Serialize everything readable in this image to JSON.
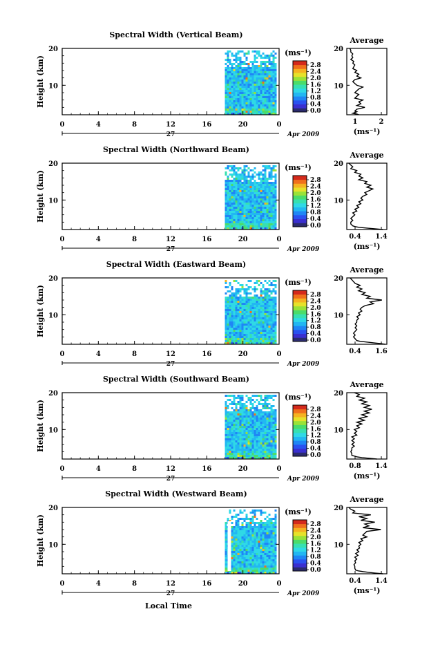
{
  "colors": {
    "colorbar": [
      "#2b2b6e",
      "#3a2fd0",
      "#2a52f0",
      "#1f86f5",
      "#22b7f2",
      "#2fd9e6",
      "#37e0b0",
      "#4bdc6a",
      "#9ae238",
      "#e6e22a",
      "#f5b321",
      "#f0701c",
      "#d42a1c"
    ]
  },
  "x_axis": {
    "ticks": [
      "0",
      "4",
      "8",
      "12",
      "16",
      "20",
      "0"
    ],
    "day_label": "27",
    "date_label": "Apr 2009",
    "title": "Local Time"
  },
  "y_axis": {
    "label": "Height (km)",
    "ticks": [
      "20",
      "10"
    ]
  },
  "colorbar": {
    "unit": "(ms⁻¹)",
    "ticks": [
      "2.8",
      "2.4",
      "2.0",
      "1.6",
      "1.2",
      "0.8",
      "0.4",
      "0.0"
    ]
  },
  "panels": [
    {
      "title": "Spectral Width (Vertical Beam)",
      "avg_title": "Average",
      "avg_xlabel": "(ms⁻¹)",
      "avg_xticks": [
        "1",
        "2"
      ]
    },
    {
      "title": "Spectral Width (Northward Beam)",
      "avg_title": "Average",
      "avg_xlabel": "(ms⁻¹)",
      "avg_xticks": [
        "0.4",
        "1.4"
      ]
    },
    {
      "title": "Spectral Width (Eastward Beam)",
      "avg_title": "Average",
      "avg_xlabel": "",
      "avg_xticks": [
        "0.4",
        "1.6"
      ]
    },
    {
      "title": "Spectral Width (Southward Beam)",
      "avg_title": "Average",
      "avg_xlabel": "(ms⁻¹)",
      "avg_xticks": [
        "0.8",
        "1.4"
      ]
    },
    {
      "title": "Spectral Width (Westward Beam)",
      "avg_title": "Average",
      "avg_xlabel": "(ms⁻¹)",
      "avg_xticks": [
        "0.4",
        "1.4"
      ]
    }
  ],
  "chart_data": [
    {
      "type": "heatmap",
      "title": "Spectral Width (Vertical Beam)",
      "xlabel": "Local Time",
      "ylabel": "Height (km)",
      "xlim": [
        0,
        24
      ],
      "ylim": [
        2,
        20
      ],
      "clim": [
        0.0,
        3.0
      ],
      "data_start_hour": 18.0
    },
    {
      "type": "line",
      "title": "Average",
      "xlabel": "(ms⁻¹)",
      "ylabel": "Height (km)",
      "xlim": [
        0.4,
        2.4
      ],
      "ylim": [
        2,
        20
      ],
      "x": [
        0.55,
        0.6,
        0.6,
        0.7,
        0.65,
        0.7,
        0.6,
        0.75,
        0.7,
        0.8,
        0.75,
        0.7,
        0.9,
        0.8,
        1.0,
        0.9,
        1.1,
        0.8,
        0.7,
        0.8,
        0.9,
        1.2,
        1.0,
        0.9,
        0.8,
        1.0,
        0.9,
        0.8,
        1.2,
        1.0,
        1.1,
        0.9,
        1.3,
        0.9,
        0.8,
        0.9,
        0.8,
        0.7,
        0.9,
        1.0
      ],
      "y": [
        20,
        19.5,
        19,
        18.5,
        18,
        17.5,
        17,
        16.5,
        16,
        15.5,
        15,
        14.5,
        14,
        13.5,
        13,
        12.5,
        12,
        11.5,
        11,
        10.5,
        10,
        9.5,
        9,
        8.5,
        8,
        7.5,
        7,
        6.5,
        6,
        5.5,
        5,
        4.5,
        4,
        3.5,
        3,
        2.8,
        2.6,
        2.4,
        2.2,
        2
      ]
    },
    {
      "type": "heatmap",
      "title": "Spectral Width (Northward Beam)",
      "xlabel": "Local Time",
      "ylabel": "Height (km)",
      "xlim": [
        0,
        24
      ],
      "ylim": [
        2,
        20
      ],
      "clim": [
        0.0,
        3.0
      ],
      "data_start_hour": 18.0
    },
    {
      "type": "line",
      "title": "Average",
      "xlabel": "(ms⁻¹)",
      "ylabel": "Height (km)",
      "xlim": [
        0.4,
        1.4
      ],
      "ylim": [
        2,
        20
      ],
      "x": [
        0.45,
        0.5,
        0.55,
        0.5,
        0.65,
        0.6,
        0.75,
        0.7,
        0.8,
        0.7,
        0.9,
        0.85,
        1.0,
        0.9,
        1.05,
        0.95,
        0.85,
        0.9,
        0.8,
        0.75,
        0.8,
        0.7,
        0.75,
        0.65,
        0.7,
        0.6,
        0.65,
        0.55,
        0.6,
        0.55,
        0.5,
        0.55,
        0.5,
        0.5,
        0.55,
        0.6,
        0.7,
        0.9,
        1.1,
        1.3
      ],
      "y": [
        20,
        19.5,
        19,
        18.5,
        18,
        17.5,
        17,
        16.5,
        16,
        15.5,
        15,
        14.5,
        14,
        13.5,
        13,
        12.5,
        12,
        11.5,
        11,
        10.5,
        10,
        9.5,
        9,
        8.5,
        8,
        7.5,
        7,
        6.5,
        6,
        5.5,
        5,
        4.5,
        4,
        3.5,
        3,
        2.8,
        2.6,
        2.4,
        2.2,
        2
      ]
    },
    {
      "type": "heatmap",
      "title": "Spectral Width (Eastward Beam)",
      "xlabel": "Local Time",
      "ylabel": "Height (km)",
      "xlim": [
        0,
        24
      ],
      "ylim": [
        2,
        20
      ],
      "clim": [
        0.0,
        3.0
      ],
      "data_start_hour": 18.0
    },
    {
      "type": "line",
      "title": "Average",
      "xlabel": "",
      "ylabel": "Height (km)",
      "xlim": [
        0.4,
        1.6
      ],
      "ylim": [
        2,
        20
      ],
      "x": [
        0.5,
        0.55,
        0.6,
        0.65,
        0.8,
        0.7,
        0.85,
        0.75,
        0.95,
        0.85,
        1.1,
        1.0,
        1.45,
        1.1,
        1.2,
        0.95,
        0.85,
        0.8,
        0.85,
        0.75,
        0.8,
        0.7,
        0.75,
        0.7,
        0.7,
        0.65,
        0.7,
        0.65,
        0.7,
        0.65,
        0.6,
        0.65,
        0.6,
        0.65,
        0.7,
        0.8,
        1.0,
        1.2,
        1.4,
        1.55
      ],
      "y": [
        20,
        19.5,
        19,
        18.5,
        18,
        17.5,
        17,
        16.5,
        16,
        15.5,
        15,
        14.5,
        14,
        13.5,
        13,
        12.5,
        12,
        11.5,
        11,
        10.5,
        10,
        9.5,
        9,
        8.5,
        8,
        7.5,
        7,
        6.5,
        6,
        5.5,
        5,
        4.5,
        4,
        3.5,
        3,
        2.8,
        2.6,
        2.4,
        2.2,
        2
      ]
    },
    {
      "type": "heatmap",
      "title": "Spectral Width (Southward Beam)",
      "xlabel": "Local Time",
      "ylabel": "Height (km)",
      "xlim": [
        0,
        24
      ],
      "ylim": [
        2,
        20
      ],
      "clim": [
        0.0,
        3.0
      ],
      "data_start_hour": 18.0
    },
    {
      "type": "line",
      "title": "Average",
      "xlabel": "(ms⁻¹)",
      "ylabel": "Height (km)",
      "xlim": [
        0.7,
        1.5
      ],
      "ylim": [
        2,
        20
      ],
      "x": [
        0.85,
        0.95,
        0.9,
        1.05,
        0.95,
        1.1,
        1.0,
        1.15,
        1.05,
        1.2,
        1.05,
        1.15,
        1.0,
        1.1,
        0.95,
        1.05,
        0.9,
        1.0,
        0.9,
        0.95,
        0.85,
        0.9,
        0.85,
        0.9,
        0.8,
        0.85,
        0.8,
        0.85,
        0.8,
        0.85,
        0.8,
        0.8,
        0.78,
        0.8,
        0.8,
        0.85,
        0.9,
        1.0,
        1.15,
        1.3
      ],
      "y": [
        20,
        19.5,
        19,
        18.5,
        18,
        17.5,
        17,
        16.5,
        16,
        15.5,
        15,
        14.5,
        14,
        13.5,
        13,
        12.5,
        12,
        11.5,
        11,
        10.5,
        10,
        9.5,
        9,
        8.5,
        8,
        7.5,
        7,
        6.5,
        6,
        5.5,
        5,
        4.5,
        4,
        3.5,
        3,
        2.8,
        2.6,
        2.4,
        2.2,
        2
      ]
    },
    {
      "type": "heatmap",
      "title": "Spectral Width (Westward Beam)",
      "xlabel": "Local Time",
      "ylabel": "Height (km)",
      "xlim": [
        0,
        24
      ],
      "ylim": [
        2,
        20
      ],
      "clim": [
        0.0,
        3.0
      ],
      "data_start_hour": 18.0
    },
    {
      "type": "line",
      "title": "Average",
      "xlabel": "(ms⁻¹)",
      "ylabel": "Height (km)",
      "xlim": [
        0.4,
        1.4
      ],
      "ylim": [
        2,
        20
      ],
      "x": [
        0.45,
        0.5,
        0.6,
        0.55,
        1.0,
        0.7,
        0.9,
        0.75,
        1.1,
        0.85,
        0.95,
        0.8,
        1.25,
        0.9,
        0.85,
        0.8,
        0.9,
        0.75,
        0.8,
        0.7,
        0.75,
        0.7,
        0.72,
        0.65,
        0.7,
        0.62,
        0.68,
        0.6,
        0.65,
        0.6,
        0.62,
        0.58,
        0.6,
        0.6,
        0.62,
        0.68,
        0.8,
        0.95,
        1.1,
        1.3
      ],
      "y": [
        20,
        19.5,
        19,
        18.5,
        18,
        17.5,
        17,
        16.5,
        16,
        15.5,
        15,
        14.5,
        14,
        13.5,
        13,
        12.5,
        12,
        11.5,
        11,
        10.5,
        10,
        9.5,
        9,
        8.5,
        8,
        7.5,
        7,
        6.5,
        6,
        5.5,
        5,
        4.5,
        4,
        3.5,
        3,
        2.8,
        2.6,
        2.4,
        2.2,
        2
      ]
    }
  ]
}
